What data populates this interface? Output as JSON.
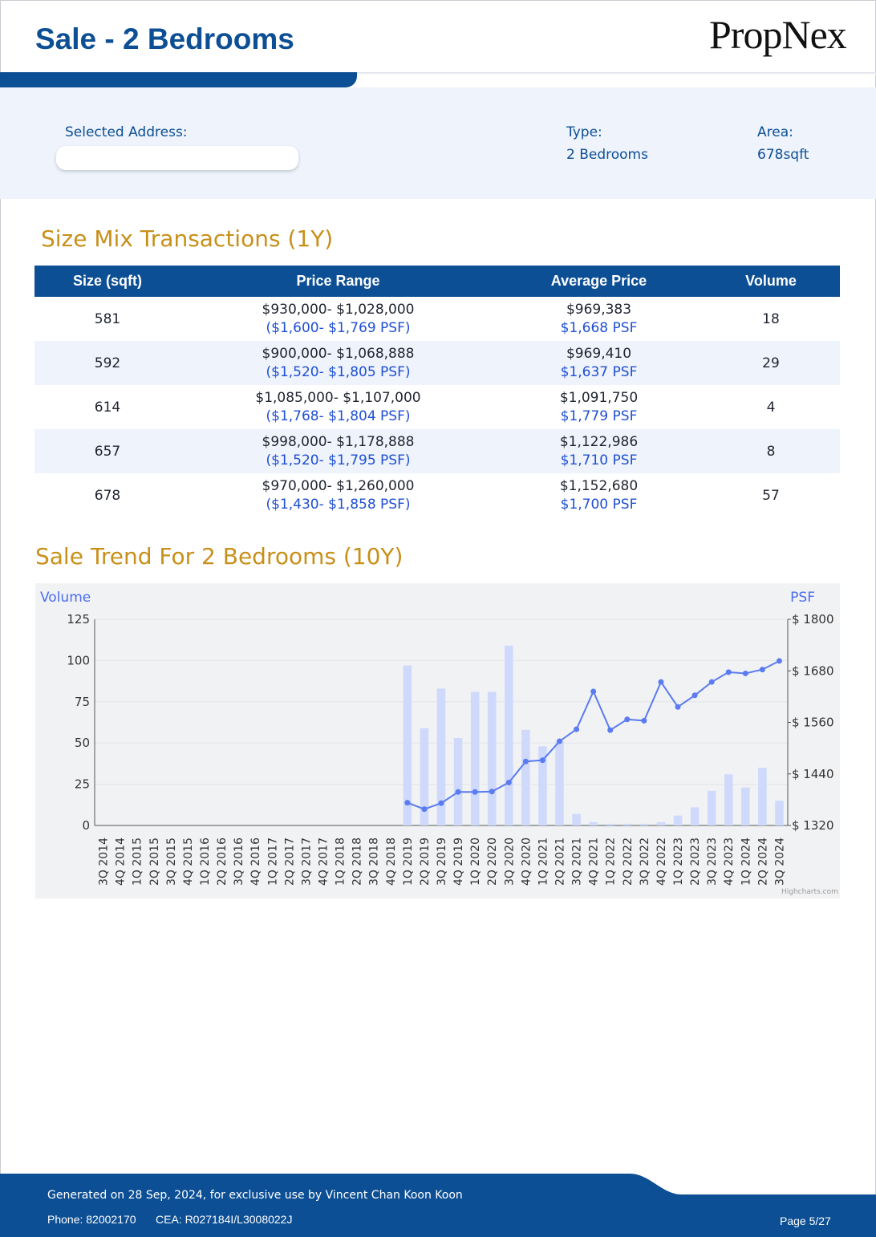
{
  "header": {
    "title": "Sale - 2 Bedrooms",
    "logo_text": "PropNex"
  },
  "info": {
    "address_label": "Selected Address:",
    "address_value": "",
    "type_label": "Type:",
    "type_value": "2 Bedrooms",
    "area_label": "Area:",
    "area_value": "678sqft"
  },
  "size_mix": {
    "heading": "Size Mix Transactions (1Y)",
    "columns": [
      "Size (sqft)",
      "Price Range",
      "Average Price",
      "Volume"
    ],
    "rows": [
      {
        "size": "581",
        "price_range": "$930,000- $1,028,000",
        "price_range_psf": "($1,600- $1,769 PSF)",
        "avg_price": "$969,383",
        "avg_psf": "$1,668 PSF",
        "volume": "18"
      },
      {
        "size": "592",
        "price_range": "$900,000- $1,068,888",
        "price_range_psf": "($1,520- $1,805 PSF)",
        "avg_price": "$969,410",
        "avg_psf": "$1,637 PSF",
        "volume": "29"
      },
      {
        "size": "614",
        "price_range": "$1,085,000- $1,107,000",
        "price_range_psf": "($1,768- $1,804 PSF)",
        "avg_price": "$1,091,750",
        "avg_psf": "$1,779 PSF",
        "volume": "4"
      },
      {
        "size": "657",
        "price_range": "$998,000- $1,178,888",
        "price_range_psf": "($1,520- $1,795 PSF)",
        "avg_price": "$1,122,986",
        "avg_psf": "$1,710 PSF",
        "volume": "8"
      },
      {
        "size": "678",
        "price_range": "$970,000- $1,260,000",
        "price_range_psf": "($1,430- $1,858 PSF)",
        "avg_price": "$1,152,680",
        "avg_psf": "$1,700 PSF",
        "volume": "57"
      }
    ]
  },
  "trend": {
    "heading": "Sale Trend For 2 Bedrooms (10Y)"
  },
  "chart_data": {
    "type": "bar",
    "categories": [
      "3Q 2014",
      "4Q 2014",
      "1Q 2015",
      "2Q 2015",
      "3Q 2015",
      "4Q 2015",
      "1Q 2016",
      "2Q 2016",
      "3Q 2016",
      "4Q 2016",
      "1Q 2017",
      "2Q 2017",
      "3Q 2017",
      "4Q 2017",
      "1Q 2018",
      "2Q 2018",
      "3Q 2018",
      "4Q 2018",
      "1Q 2019",
      "2Q 2019",
      "3Q 2019",
      "4Q 2019",
      "1Q 2020",
      "2Q 2020",
      "3Q 2020",
      "4Q 2020",
      "1Q 2021",
      "2Q 2021",
      "3Q 2021",
      "4Q 2021",
      "1Q 2022",
      "2Q 2022",
      "3Q 2022",
      "4Q 2022",
      "1Q 2023",
      "2Q 2023",
      "3Q 2023",
      "4Q 2023",
      "1Q 2024",
      "2Q 2024",
      "3Q 2024"
    ],
    "series": [
      {
        "name": "Volume",
        "type": "bar",
        "axis": "left",
        "values": [
          0,
          0,
          0,
          0,
          0,
          0,
          0,
          0,
          0,
          0,
          0,
          0,
          0,
          0,
          0,
          0,
          0,
          0,
          97,
          59,
          83,
          53,
          81,
          81,
          109,
          58,
          48,
          51,
          7,
          2,
          1,
          1,
          1,
          2,
          6,
          11,
          21,
          31,
          23,
          35,
          15
        ]
      },
      {
        "name": "PSF",
        "type": "line",
        "axis": "right",
        "values": [
          null,
          null,
          null,
          null,
          null,
          null,
          null,
          null,
          null,
          null,
          null,
          null,
          null,
          null,
          null,
          null,
          null,
          null,
          1373,
          1358,
          1372,
          1398,
          1398,
          1399,
          1420,
          1469,
          1472,
          1516,
          1544,
          1632,
          1542,
          1567,
          1564,
          1654,
          1596,
          1623,
          1654,
          1677,
          1674,
          1683,
          1703
        ]
      }
    ],
    "left_axis_title": "Volume",
    "right_axis_title": "PSF",
    "left_ylim": [
      0,
      125
    ],
    "left_ticks": [
      "0",
      "25",
      "50",
      "75",
      "100",
      "125"
    ],
    "right_ylim": [
      1320,
      1800
    ],
    "right_ticks": [
      "$ 1320",
      "$ 1440",
      "$ 1560",
      "$ 1680",
      "$ 1800"
    ],
    "credit": "Highcharts.com",
    "colors": {
      "bar": "#cfd9fb",
      "line": "#5b7bf0",
      "axis_title": "#4a6cf0"
    }
  },
  "footer": {
    "generated": "Generated on 28 Sep, 2024, for exclusive use by Vincent Chan Koon Koon",
    "phone": "Phone: 82002170",
    "cea": "CEA: R027184I/L3008022J",
    "page": "Page 5/27"
  }
}
